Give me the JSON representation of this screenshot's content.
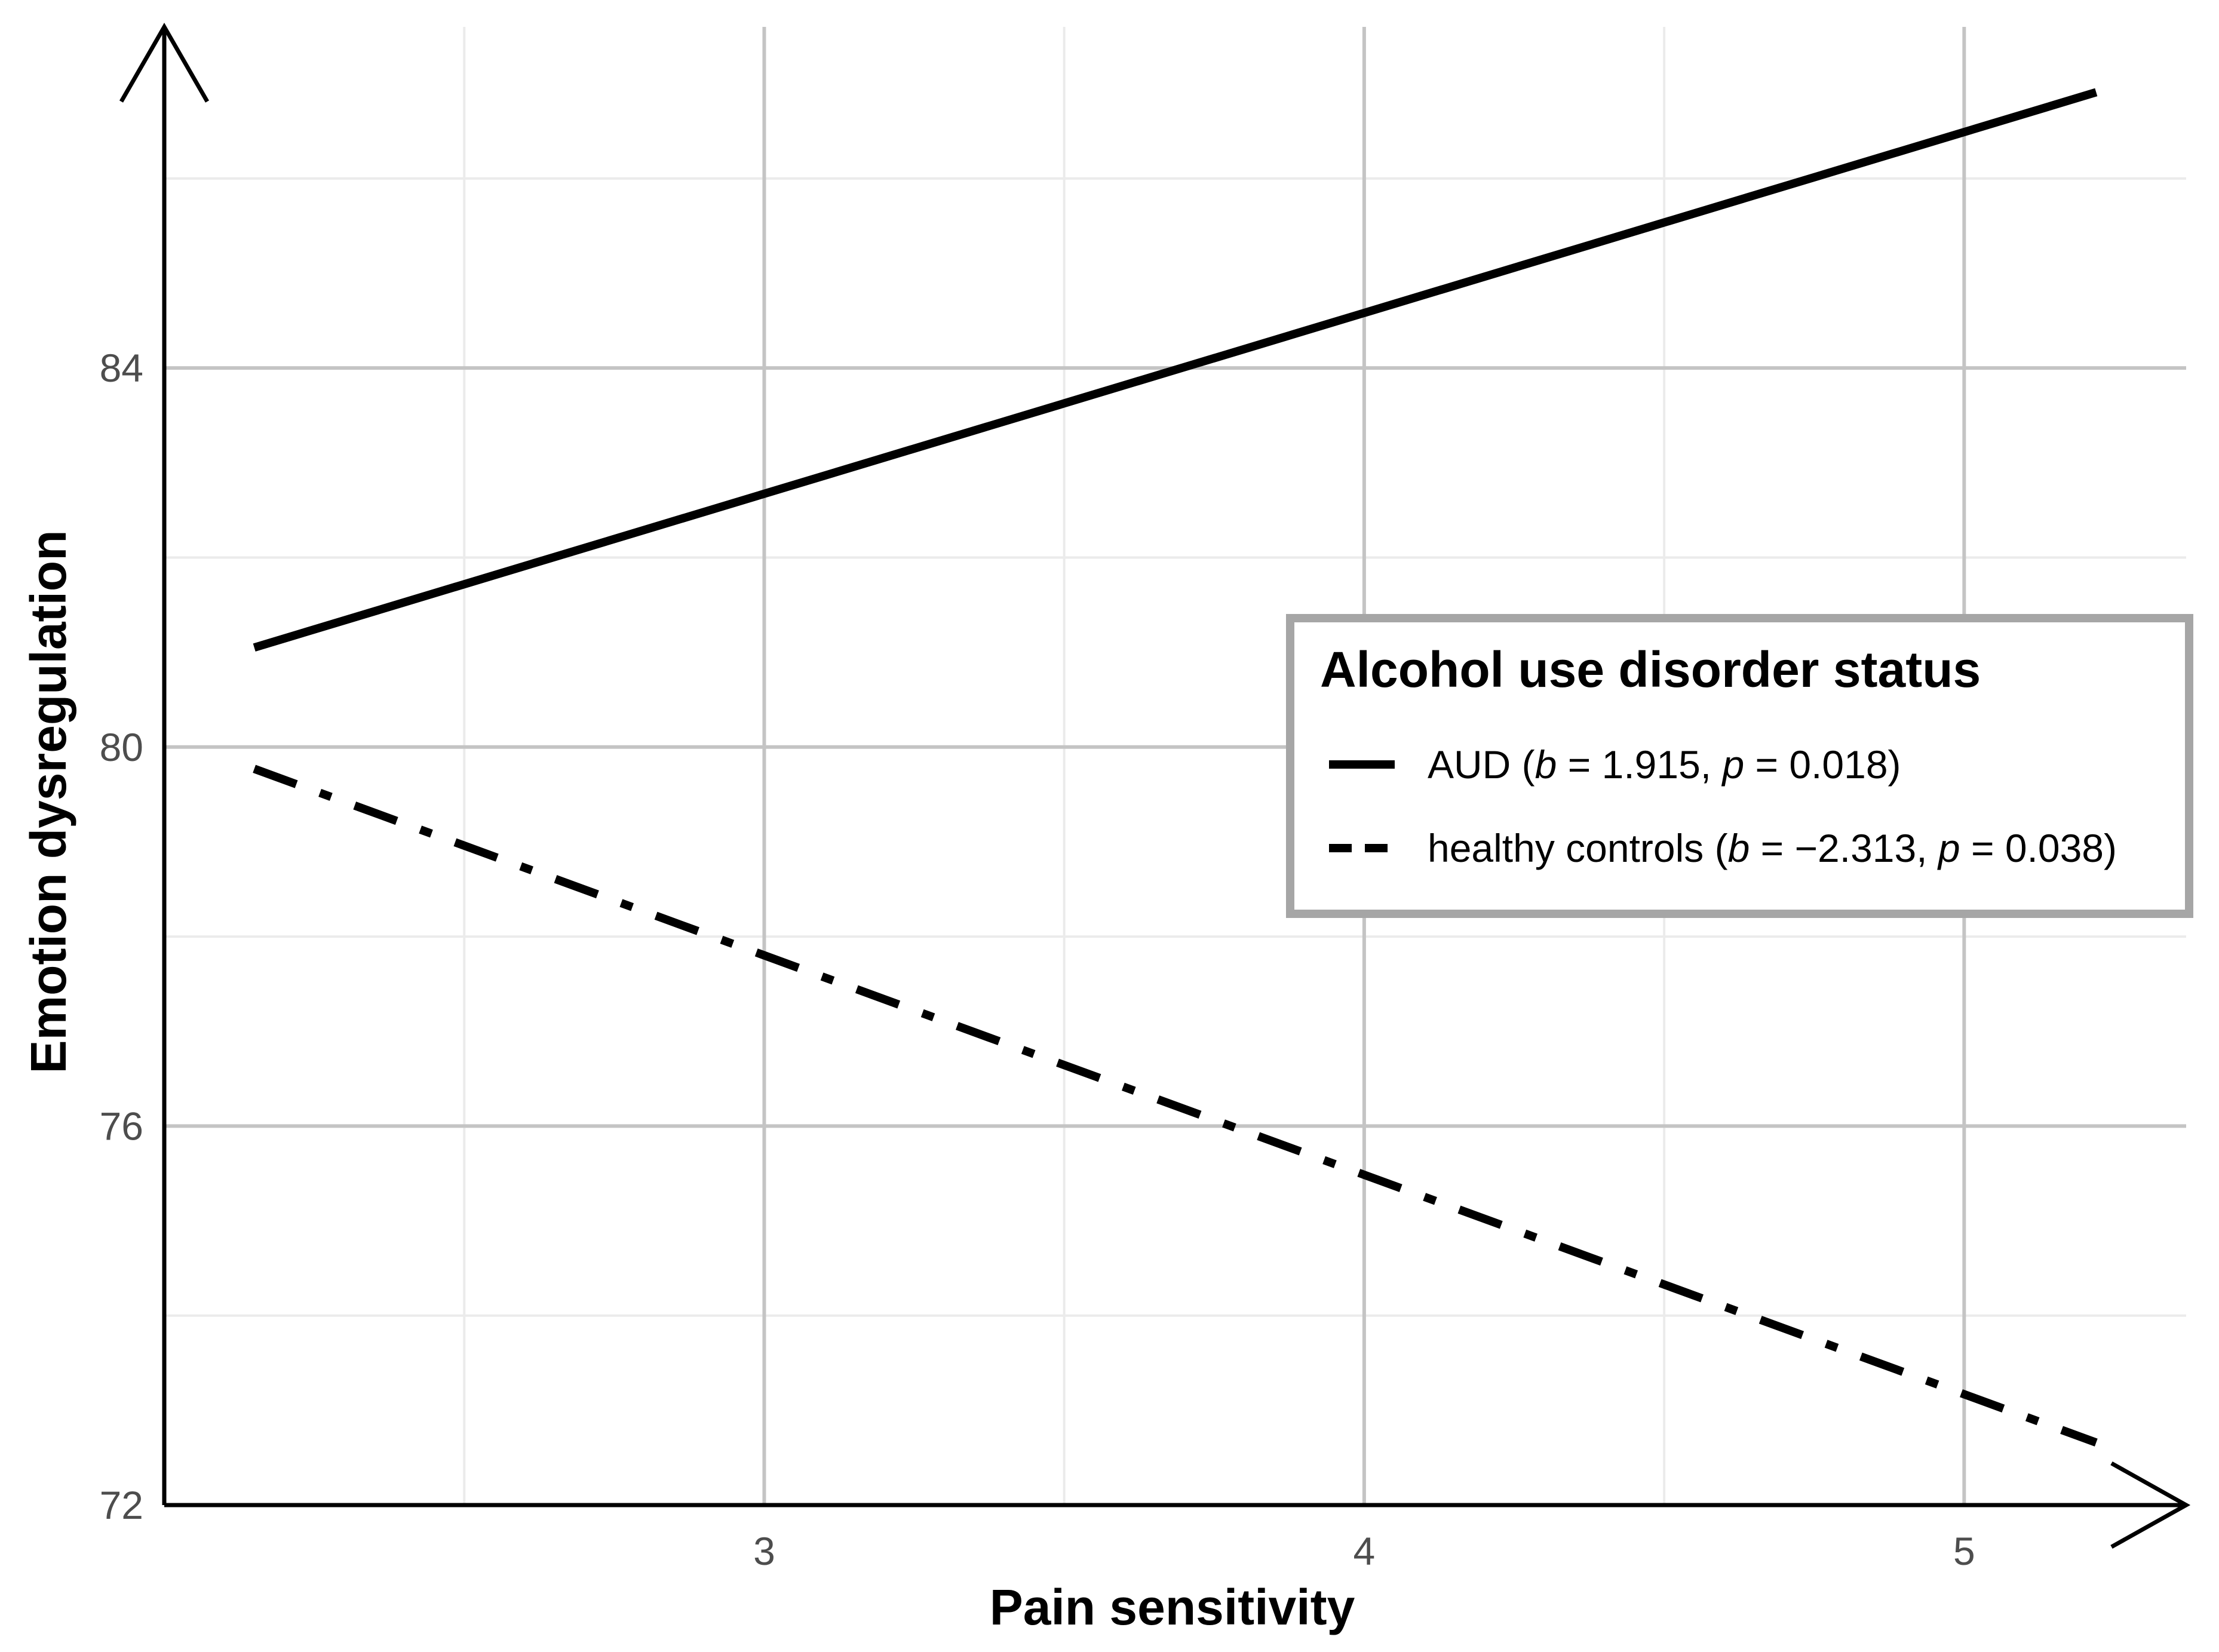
{
  "chart_data": {
    "type": "line",
    "xlabel": "Pain sensitivity",
    "ylabel": "Emotion dysregulation",
    "xlim": [
      2.0,
      5.37
    ],
    "ylim": [
      72,
      87.6
    ],
    "x_ticks": [
      3,
      4,
      5
    ],
    "x_tick_labels": [
      "3",
      "4",
      "5"
    ],
    "y_ticks": [
      72,
      76,
      80,
      84
    ],
    "y_tick_labels": [
      "72",
      "76",
      "80",
      "84"
    ],
    "grid": true,
    "legend": {
      "title": "Alcohol use disorder status",
      "placement": "right"
    },
    "series": [
      {
        "name": "AUD",
        "stats": {
          "b": "1.915",
          "p": "0.018"
        },
        "line_style": "solid",
        "color": "#000000",
        "x": [
          2.15,
          5.22
        ],
        "y": [
          81.05,
          86.91
        ]
      },
      {
        "name": "healthy controls",
        "stats": {
          "b": "−2.313",
          "p": "0.038"
        },
        "line_style": "dashdot",
        "color": "#000000",
        "x": [
          2.15,
          5.22
        ],
        "y": [
          79.77,
          72.66
        ]
      }
    ]
  }
}
